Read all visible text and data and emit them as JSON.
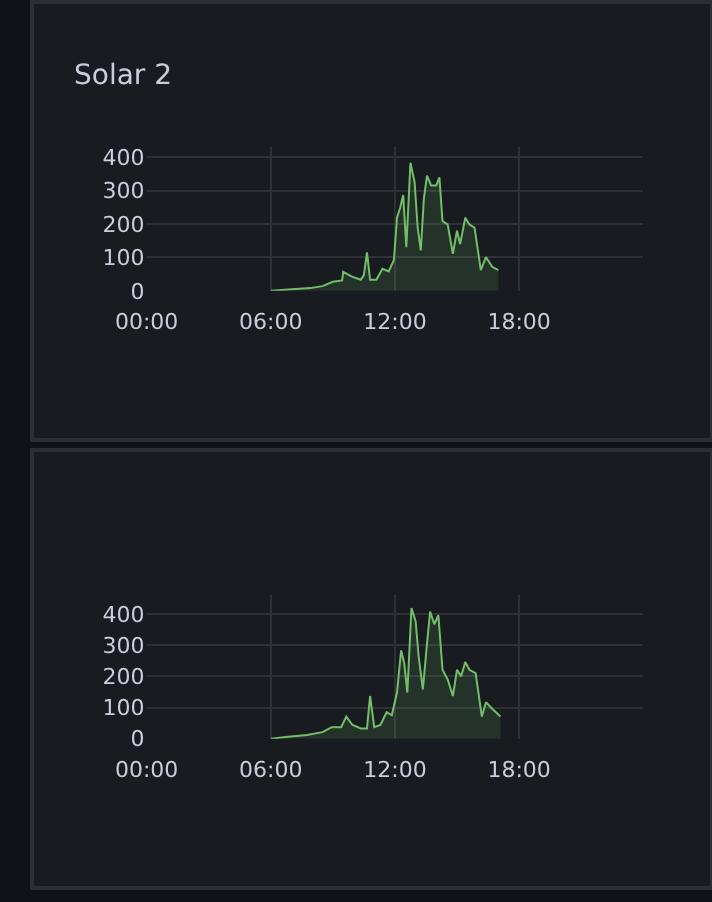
{
  "chart_data": [
    {
      "type": "area",
      "title": "Solar 2",
      "xlim": [
        0,
        24
      ],
      "xticks": [
        {
          "value": 0,
          "label": "00:00"
        },
        {
          "value": 6,
          "label": "06:00"
        },
        {
          "value": 12,
          "label": "12:00"
        },
        {
          "value": 18,
          "label": "18:00"
        }
      ],
      "ylim": [
        0,
        430
      ],
      "yticks": [
        0,
        100,
        200,
        300,
        400
      ],
      "grid": true,
      "marker": "none",
      "series": [
        {
          "color": "#73bf69",
          "x": [
            6.0,
            6.85,
            7.9,
            8.5,
            9.0,
            9.45,
            9.5,
            9.9,
            10.35,
            10.5,
            10.65,
            10.8,
            11.1,
            11.4,
            11.7,
            11.95,
            12.1,
            12.25,
            12.4,
            12.55,
            12.75,
            12.95,
            13.1,
            13.25,
            13.4,
            13.55,
            13.75,
            14.0,
            14.15,
            14.3,
            14.55,
            14.8,
            15.0,
            15.15,
            15.4,
            15.6,
            15.85,
            16.15,
            16.4,
            16.7,
            17.0
          ],
          "values": [
            0,
            4,
            8,
            14,
            27,
            31,
            57,
            43,
            33,
            47,
            115,
            33,
            33,
            66,
            58,
            92,
            219,
            248,
            287,
            131,
            384,
            326,
            189,
            121,
            277,
            345,
            316,
            316,
            340,
            209,
            199,
            111,
            180,
            140,
            219,
            199,
            189,
            62,
            101,
            72,
            62
          ]
        }
      ]
    },
    {
      "type": "area",
      "xlim": [
        0,
        24
      ],
      "xticks": [
        {
          "value": 0,
          "label": "00:00"
        },
        {
          "value": 6,
          "label": "06:00"
        },
        {
          "value": 12,
          "label": "12:00"
        },
        {
          "value": 18,
          "label": "18:00"
        }
      ],
      "ylim": [
        0,
        460
      ],
      "yticks": [
        0,
        100,
        200,
        300,
        400
      ],
      "grid": true,
      "marker": "none",
      "series": [
        {
          "color": "#73bf69",
          "x": [
            6.0,
            6.85,
            7.75,
            8.5,
            8.95,
            9.4,
            9.65,
            9.95,
            10.35,
            10.65,
            10.8,
            11.0,
            11.3,
            11.6,
            11.85,
            12.1,
            12.3,
            12.45,
            12.6,
            12.8,
            13.0,
            13.15,
            13.35,
            13.55,
            13.7,
            13.9,
            14.1,
            14.3,
            14.55,
            14.8,
            15.0,
            15.2,
            15.4,
            15.6,
            15.9,
            16.2,
            16.4,
            16.7,
            17.1
          ],
          "values": [
            0,
            6,
            12,
            21,
            37,
            37,
            71,
            44,
            33,
            33,
            137,
            37,
            44,
            85,
            75,
            148,
            283,
            242,
            148,
            419,
            377,
            262,
            158,
            304,
            408,
            367,
            396,
            221,
            190,
            137,
            221,
            200,
            246,
            221,
            210,
            71,
            117,
            96,
            71
          ]
        }
      ]
    }
  ]
}
